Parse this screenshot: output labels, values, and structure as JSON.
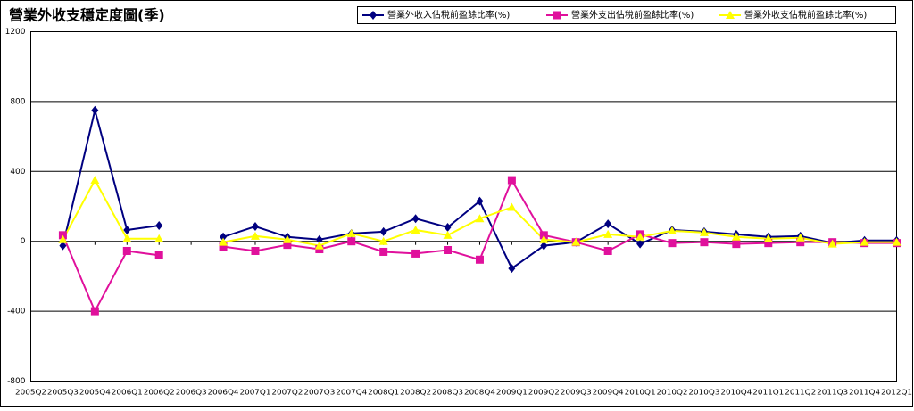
{
  "chart_data": {
    "type": "line",
    "title": "營業外收支穩定度圖(季)",
    "categories": [
      "2005Q2",
      "2005Q3",
      "2005Q4",
      "2006Q1",
      "2006Q2",
      "2006Q3",
      "2006Q4",
      "2007Q1",
      "2007Q2",
      "2007Q3",
      "2007Q4",
      "2008Q1",
      "2008Q2",
      "2008Q3",
      "2008Q4",
      "2009Q1",
      "2009Q2",
      "2009Q3",
      "2009Q4",
      "2010Q1",
      "2010Q2",
      "2010Q3",
      "2010Q4",
      "2011Q1",
      "2011Q2",
      "2011Q3",
      "2011Q4",
      "2012Q1"
    ],
    "series": [
      {
        "name": "營業外收入佔稅前盈餘比率(%)",
        "color": "#000080",
        "marker": "diamond",
        "values": [
          null,
          -25,
          750,
          65,
          90,
          null,
          25,
          85,
          25,
          10,
          45,
          55,
          130,
          80,
          230,
          -155,
          -25,
          -5,
          100,
          -15,
          65,
          55,
          40,
          25,
          30,
          -10,
          5,
          5
        ]
      },
      {
        "name": "營業外支出佔稅前盈餘比率(%)",
        "color": "#e0109c",
        "marker": "square",
        "values": [
          null,
          35,
          -400,
          -55,
          -80,
          null,
          -30,
          -55,
          -20,
          -45,
          0,
          -60,
          -70,
          -50,
          -105,
          350,
          35,
          -5,
          -55,
          40,
          -10,
          -5,
          -15,
          -10,
          -5,
          -5,
          -10,
          -10
        ]
      },
      {
        "name": "營業外收支佔稅前盈餘比率(%)",
        "color": "#ffff00",
        "marker": "triangle",
        "values": [
          null,
          10,
          350,
          15,
          15,
          null,
          -5,
          30,
          10,
          -25,
          45,
          0,
          65,
          35,
          130,
          195,
          10,
          -5,
          40,
          25,
          60,
          50,
          25,
          15,
          20,
          -15,
          -5,
          -5
        ]
      }
    ],
    "ylim": [
      -800,
      1200
    ],
    "yticks": [
      -800,
      -400,
      0,
      400,
      800,
      1200
    ],
    "grid": true,
    "legend": "top-right"
  }
}
